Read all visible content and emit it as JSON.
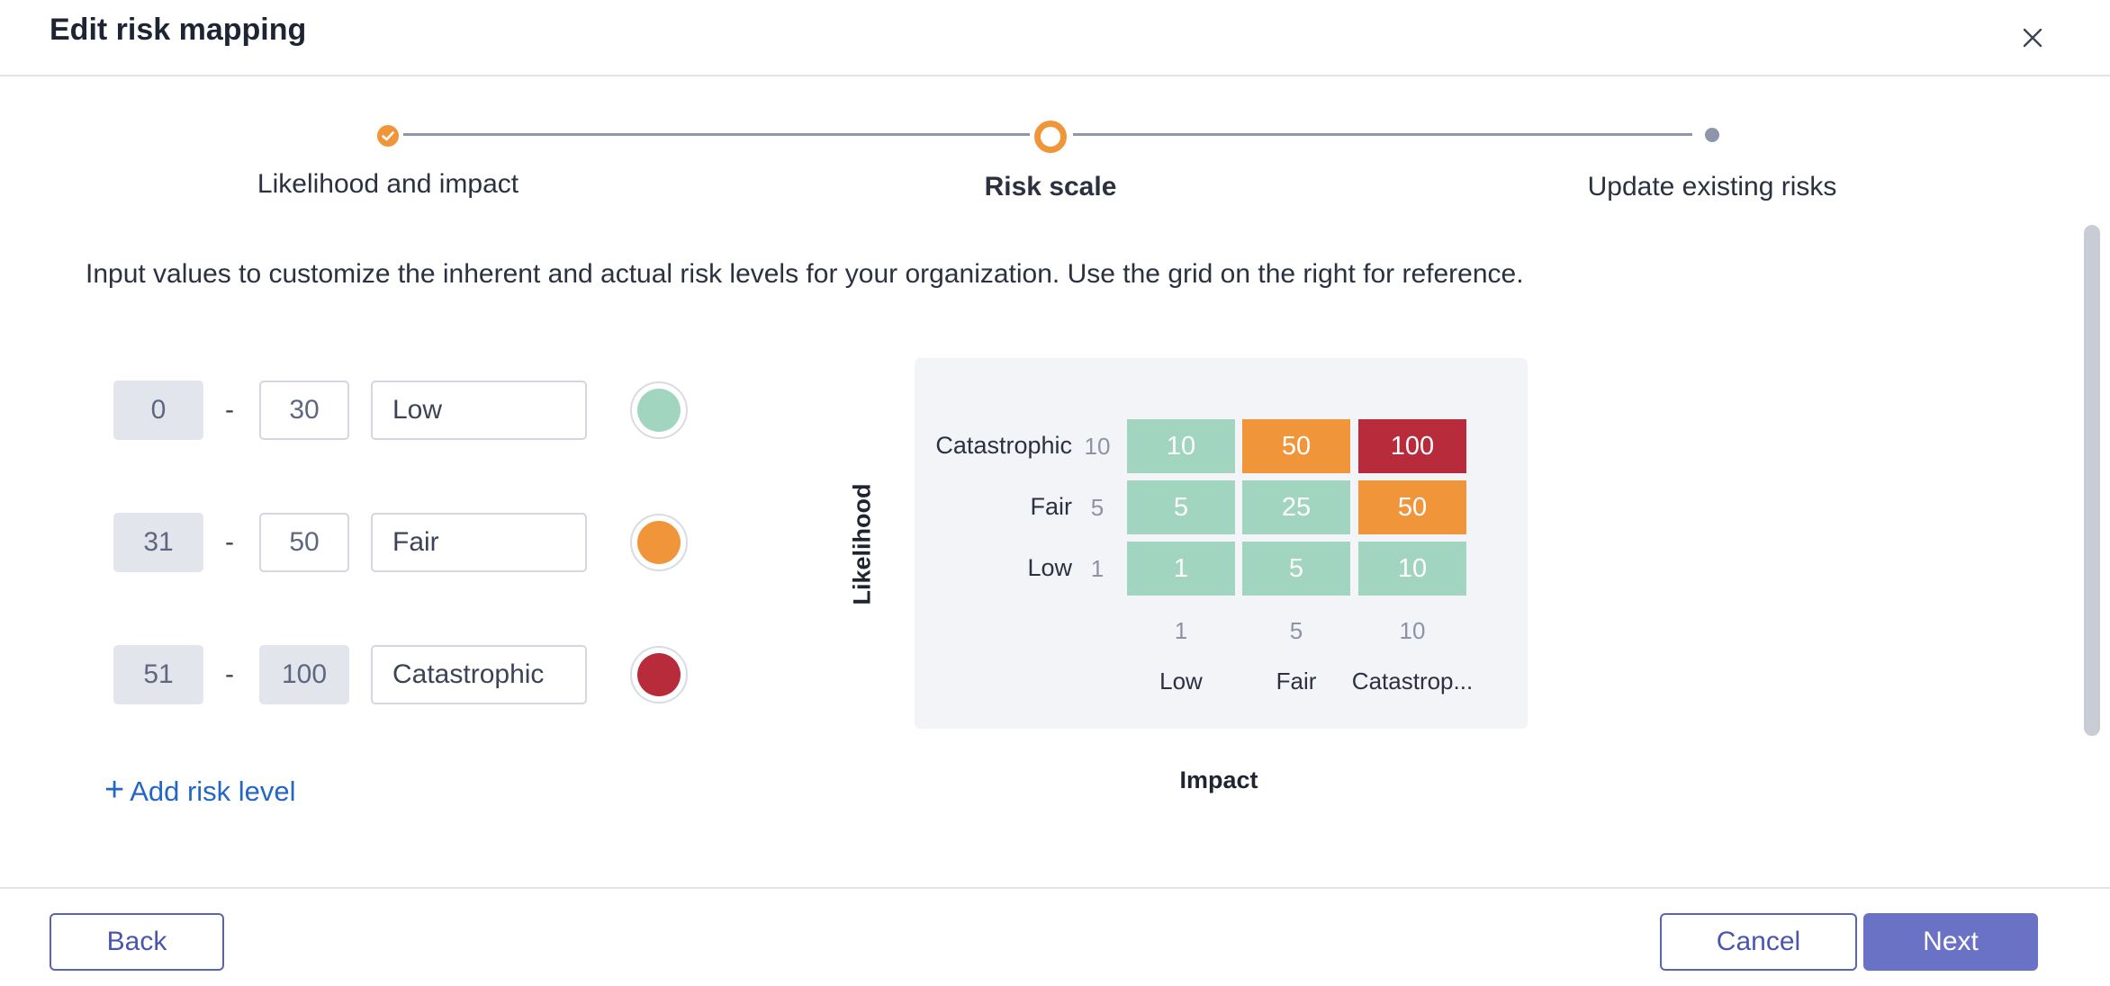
{
  "dialog": {
    "title": "Edit risk mapping"
  },
  "stepper": {
    "steps": [
      {
        "label": "Likelihood and impact",
        "state": "completed"
      },
      {
        "label": "Risk scale",
        "state": "active"
      },
      {
        "label": "Update existing risks",
        "state": "upcoming"
      }
    ]
  },
  "intro": "Input values to customize the inherent and actual risk levels for your organization. Use the grid on the right for reference.",
  "levels": [
    {
      "from": "0",
      "separator": "-",
      "to": "30",
      "to_editable": true,
      "name": "Low",
      "color": "#a2d5c0"
    },
    {
      "from": "31",
      "separator": "-",
      "to": "50",
      "to_editable": true,
      "name": "Fair",
      "color": "#f0953a"
    },
    {
      "from": "51",
      "separator": "-",
      "to": "100",
      "to_editable": false,
      "name": "Catastrophic",
      "color": "#b72b3a"
    }
  ],
  "add_level": {
    "icon": "plus-icon",
    "label": "Add risk level"
  },
  "grid": {
    "y_axis": "Likelihood",
    "x_axis": "Impact",
    "rows": [
      {
        "label": "Catastrophic",
        "value": "10",
        "cells": [
          "10",
          "50",
          "100"
        ],
        "colors": [
          "#a2d5c0",
          "#f0953a",
          "#b72b3a"
        ]
      },
      {
        "label": "Fair",
        "value": "5",
        "cells": [
          "5",
          "25",
          "50"
        ],
        "colors": [
          "#a2d5c0",
          "#a2d5c0",
          "#f0953a"
        ]
      },
      {
        "label": "Low",
        "value": "1",
        "cells": [
          "1",
          "5",
          "10"
        ],
        "colors": [
          "#a2d5c0",
          "#a2d5c0",
          "#a2d5c0"
        ]
      }
    ],
    "columns": [
      {
        "value": "1",
        "label": "Low"
      },
      {
        "value": "5",
        "label": "Fair"
      },
      {
        "value": "10",
        "label": "Catastrop..."
      }
    ]
  },
  "footer": {
    "back": "Back",
    "cancel": "Cancel",
    "next": "Next"
  },
  "colors": {
    "accent": "#f0953a",
    "primary": "#6a72c6",
    "link": "#2466c6"
  }
}
